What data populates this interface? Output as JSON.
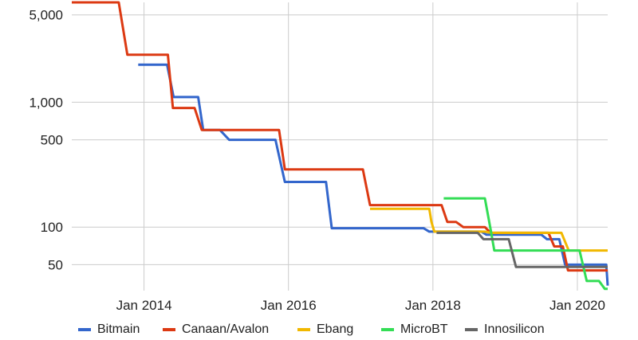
{
  "chart_data": {
    "type": "line",
    "title": "",
    "xlabel": "",
    "ylabel": "",
    "yscale": "log",
    "step": true,
    "grid": true,
    "legend_position": "bottom",
    "xlim": [
      2013.0,
      2020.42
    ],
    "ylim": [
      31,
      6300
    ],
    "x_ticks": [
      {
        "value": 2014,
        "label": "Jan 2014"
      },
      {
        "value": 2016,
        "label": "Jan 2016"
      },
      {
        "value": 2018,
        "label": "Jan 2018"
      },
      {
        "value": 2020,
        "label": "Jan 2020"
      }
    ],
    "y_ticks": [
      {
        "value": 50,
        "label": "50"
      },
      {
        "value": 100,
        "label": "100"
      },
      {
        "value": 500,
        "label": "500"
      },
      {
        "value": 1000,
        "label": "1,000"
      },
      {
        "value": 5000,
        "label": "5,000"
      }
    ],
    "series": [
      {
        "name": "Bitmain",
        "color": "#3366cc",
        "x": [
          2013.92,
          2014.32,
          2014.41,
          2014.75,
          2014.82,
          2015.05,
          2015.18,
          2015.82,
          2015.95,
          2016.27,
          2016.52,
          2016.6,
          2017.87,
          2017.95,
          2018.67,
          2018.74,
          2019.5,
          2019.58,
          2019.75,
          2019.83,
          2019.95,
          2020.4,
          2020.42
        ],
        "y": [
          2000,
          2000,
          1100,
          1100,
          600,
          600,
          500,
          500,
          230,
          230,
          230,
          98,
          98,
          92,
          92,
          87,
          87,
          80,
          80,
          50,
          50,
          50,
          34
        ]
      },
      {
        "name": "Canaan/Avalon",
        "color": "#dc3912",
        "x": [
          2013.0,
          2013.65,
          2013.77,
          2014.33,
          2014.4,
          2014.7,
          2014.8,
          2015.87,
          2015.95,
          2016.5,
          2017.03,
          2017.13,
          2018.12,
          2018.2,
          2018.32,
          2018.42,
          2018.72,
          2018.8,
          2019.6,
          2019.68,
          2019.8,
          2019.87,
          2020.05,
          2020.42
        ],
        "y": [
          6300,
          6300,
          2400,
          2400,
          900,
          900,
          600,
          600,
          290,
          290,
          290,
          150,
          150,
          110,
          110,
          100,
          100,
          90,
          90,
          70,
          70,
          45,
          45,
          45
        ]
      },
      {
        "name": "Ebang",
        "color": "#f1b800",
        "x": [
          2017.13,
          2017.95,
          2017.98,
          2018.02,
          2018.72,
          2018.8,
          2019.78,
          2019.88,
          2020.42
        ],
        "y": [
          140,
          140,
          110,
          92,
          92,
          90,
          90,
          65,
          65
        ]
      },
      {
        "name": "MicroBT",
        "color": "#33dd55",
        "x": [
          2018.15,
          2018.72,
          2018.8,
          2018.85,
          2019.95,
          2020.03,
          2020.13,
          2020.3,
          2020.38,
          2020.42
        ],
        "y": [
          170,
          170,
          95,
          65,
          65,
          65,
          37,
          37,
          32,
          32
        ]
      },
      {
        "name": "Innosilicon",
        "color": "#666666",
        "x": [
          2018.05,
          2018.62,
          2018.7,
          2019.05,
          2019.15,
          2020.42
        ],
        "y": [
          90,
          90,
          80,
          80,
          48,
          48
        ]
      }
    ]
  }
}
